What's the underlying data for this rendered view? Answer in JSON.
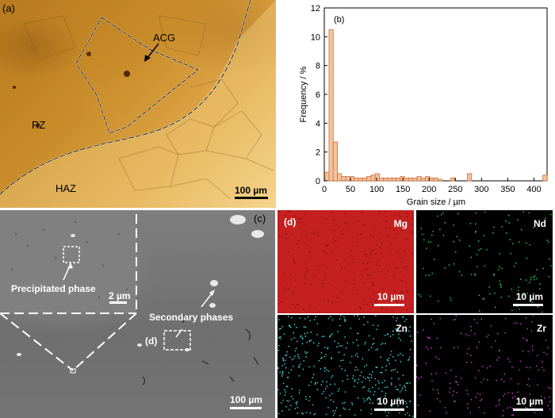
{
  "panel_a": {
    "label": "(a)",
    "region_rz": "RZ",
    "region_haz": "HAZ",
    "region_acg": "ACG",
    "scale": "100 µm"
  },
  "panel_b": {
    "label": "(b)",
    "chart_data": {
      "type": "bar",
      "xlabel": "Grain size / µm",
      "ylabel": "Frequency / %",
      "xlim": [
        0,
        425
      ],
      "ylim": [
        0,
        12
      ],
      "xticks": [
        "0",
        "50",
        "100",
        "150",
        "200",
        "250",
        "300",
        "350",
        "400"
      ],
      "yticks": [
        "0",
        "2",
        "4",
        "6",
        "8",
        "10",
        "12"
      ],
      "bin_width": 8,
      "x": [
        5,
        13,
        21,
        29,
        37,
        45,
        53,
        61,
        69,
        77,
        85,
        93,
        101,
        109,
        117,
        125,
        133,
        141,
        149,
        157,
        165,
        173,
        181,
        189,
        197,
        205,
        213,
        221,
        245,
        277,
        421
      ],
      "values": [
        0.6,
        10.5,
        2.7,
        0.5,
        0.3,
        0.3,
        0.3,
        0.2,
        0.2,
        0.2,
        0.3,
        0.4,
        0.5,
        0.2,
        0.2,
        0.2,
        0.2,
        0.2,
        0.3,
        0.2,
        0.2,
        0.2,
        0.3,
        0.2,
        0.3,
        0.2,
        0.2,
        0.1,
        0.2,
        0.5,
        0.4
      ],
      "color": "#f5c29b",
      "edge_color": "#c9703c"
    }
  },
  "panel_c": {
    "label": "(c)",
    "precipitated": "Precipitated phase",
    "inset_scale": "2 µm",
    "secondary": "Secondary phases",
    "ref_d": "(d)",
    "scale": "100 µm"
  },
  "panel_d": {
    "label": "(d)",
    "maps": [
      {
        "element": "Mg",
        "scale": "10 µm"
      },
      {
        "element": "Nd",
        "scale": "10 µm"
      },
      {
        "element": "Zn",
        "scale": "10 µm"
      },
      {
        "element": "Zr",
        "scale": "10 µm"
      }
    ],
    "dot_colors": {
      "Nd": "#2ecc40",
      "Zn": "#39d0d6",
      "Zr": "#c040c8"
    }
  }
}
